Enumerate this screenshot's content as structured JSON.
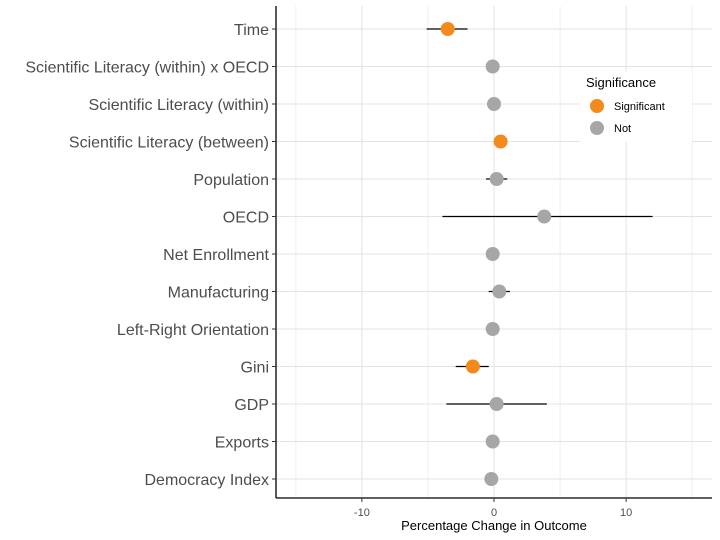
{
  "chart_data": {
    "type": "scatter",
    "subtype": "coefficient-plot",
    "title": "",
    "xlabel": "Percentage Change in Outcome",
    "ylabel": "",
    "xlim": [
      -16.5,
      16.5
    ],
    "x_ticks": [
      -10,
      0,
      10
    ],
    "x_tick_labels": [
      "-10",
      "0",
      "10"
    ],
    "grid": true,
    "legend_position": "top-right",
    "legend": {
      "title": "Significance",
      "entries": [
        {
          "label": "Significant",
          "color": "#f28a1c"
        },
        {
          "label": "Not",
          "color": "#a6a6a6"
        }
      ]
    },
    "colors": {
      "significant": "#f28a1c",
      "not": "#a6a6a6"
    },
    "categories": [
      "Time",
      "Scientific Literacy (within) x OECD",
      "Scientific Literacy (within)",
      "Scientific Literacy (between)",
      "Population",
      "OECD",
      "Net Enrollment",
      "Manufacturing",
      "Left-Right Orientation",
      "Gini",
      "GDP",
      "Exports",
      "Democracy Index"
    ],
    "series": [
      {
        "estimate": [
          -3.5,
          -0.1,
          0.0,
          0.5,
          0.2,
          3.8,
          -0.1,
          0.4,
          -0.1,
          -1.6,
          0.2,
          -0.1,
          -0.2
        ],
        "lower": [
          -5.1,
          -0.1,
          0.0,
          0.5,
          -0.6,
          -3.9,
          -0.1,
          -0.4,
          -0.1,
          -2.9,
          -3.6,
          -0.1,
          -0.2
        ],
        "upper": [
          -2.0,
          -0.1,
          0.0,
          0.5,
          1.0,
          12.0,
          -0.1,
          1.2,
          -0.1,
          -0.4,
          4.0,
          -0.1,
          -0.2
        ],
        "significance": [
          "Significant",
          "Not",
          "Not",
          "Significant",
          "Not",
          "Not",
          "Not",
          "Not",
          "Not",
          "Significant",
          "Not",
          "Not",
          "Not"
        ]
      }
    ]
  }
}
